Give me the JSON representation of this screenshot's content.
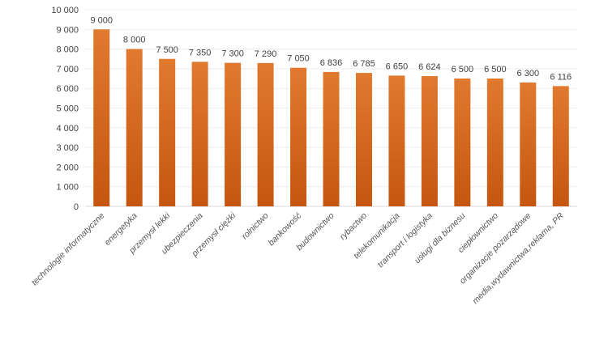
{
  "chart_data": {
    "type": "bar",
    "title": "",
    "xlabel": "",
    "ylabel": "",
    "ylim": [
      0,
      10000
    ],
    "yticks": [
      0,
      1000,
      2000,
      3000,
      4000,
      5000,
      6000,
      7000,
      8000,
      9000,
      10000
    ],
    "ytick_labels": [
      "0",
      "1 000",
      "2 000",
      "3 000",
      "4 000",
      "5 000",
      "6 000",
      "7 000",
      "8 000",
      "9 000",
      "10 000"
    ],
    "grid": true,
    "legend": "none",
    "bar_color": "#E07A2E",
    "bar_color_dark": "#C5560F",
    "categories": [
      "technologie informatyczne",
      "energetyka",
      "przemysł lekki",
      "ubezpieczenia",
      "przemysł ciężki",
      "rolnictwo",
      "bankowość",
      "budownictwo",
      "rybactwo",
      "telekomunikacja",
      "transport i logistyka",
      "usługi dla biznesu",
      "ciepłownictwo",
      "organizacje pozarządowe",
      "media,wydawnictwa,reklama, PR"
    ],
    "values": [
      9000,
      8000,
      7500,
      7350,
      7300,
      7290,
      7050,
      6836,
      6785,
      6650,
      6624,
      6500,
      6500,
      6300,
      6116
    ],
    "data_labels": [
      "9 000",
      "8 000",
      "7 500",
      "7 350",
      "7 300",
      "7 290",
      "7 050",
      "6 836",
      "6 785",
      "6 650",
      "6 624",
      "6 500",
      "6 500",
      "6 300",
      "6 116"
    ]
  }
}
